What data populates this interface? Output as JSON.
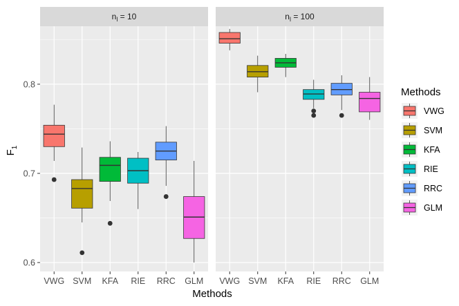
{
  "chart_data": {
    "type": "boxplot",
    "xlabel": "Methods",
    "ylabel": "F",
    "ylabel_sub": "1",
    "ylim": [
      0.59,
      0.865
    ],
    "yticks": [
      0.6,
      0.7,
      0.8
    ],
    "ytick_labels": [
      "0.6",
      "0.7",
      "0.8"
    ],
    "categories": [
      "VWG",
      "SVM",
      "KFA",
      "RIE",
      "RRC",
      "GLM"
    ],
    "colors": {
      "VWG": "#F8766D",
      "SVM": "#B79F00",
      "KFA": "#00BA38",
      "RIE": "#00BFC4",
      "RRC": "#619CFF",
      "GLM": "#F564E3"
    },
    "legend": {
      "title": "Methods",
      "position": "right",
      "entries": [
        "VWG",
        "SVM",
        "KFA",
        "RIE",
        "RRC",
        "GLM"
      ]
    },
    "panels": [
      {
        "strip": {
          "main": "n",
          "sub": "l",
          "suffix": " = 10"
        },
        "boxes": [
          {
            "method": "VWG",
            "lower_whisker": 0.714,
            "q1": 0.73,
            "median": 0.744,
            "q3": 0.754,
            "upper_whisker": 0.777,
            "outliers": [
              0.693
            ]
          },
          {
            "method": "SVM",
            "lower_whisker": 0.645,
            "q1": 0.661,
            "median": 0.683,
            "q3": 0.693,
            "upper_whisker": 0.729,
            "outliers": [
              0.611
            ]
          },
          {
            "method": "KFA",
            "lower_whisker": 0.669,
            "q1": 0.691,
            "median": 0.709,
            "q3": 0.718,
            "upper_whisker": 0.736,
            "outliers": [
              0.644
            ]
          },
          {
            "method": "RIE",
            "lower_whisker": 0.66,
            "q1": 0.689,
            "median": 0.703,
            "q3": 0.717,
            "upper_whisker": 0.724,
            "outliers": []
          },
          {
            "method": "RRC",
            "lower_whisker": 0.686,
            "q1": 0.715,
            "median": 0.725,
            "q3": 0.735,
            "upper_whisker": 0.753,
            "outliers": [
              0.674
            ]
          },
          {
            "method": "GLM",
            "lower_whisker": 0.6,
            "q1": 0.627,
            "median": 0.651,
            "q3": 0.674,
            "upper_whisker": 0.714,
            "outliers": []
          }
        ]
      },
      {
        "strip": {
          "main": "n",
          "sub": "l",
          "suffix": " = 100"
        },
        "boxes": [
          {
            "method": "VWG",
            "lower_whisker": 0.838,
            "q1": 0.846,
            "median": 0.851,
            "q3": 0.858,
            "upper_whisker": 0.862,
            "outliers": []
          },
          {
            "method": "SVM",
            "lower_whisker": 0.791,
            "q1": 0.808,
            "median": 0.814,
            "q3": 0.821,
            "upper_whisker": 0.832,
            "outliers": []
          },
          {
            "method": "KFA",
            "lower_whisker": 0.808,
            "q1": 0.819,
            "median": 0.824,
            "q3": 0.829,
            "upper_whisker": 0.834,
            "outliers": []
          },
          {
            "method": "RIE",
            "lower_whisker": 0.773,
            "q1": 0.783,
            "median": 0.789,
            "q3": 0.794,
            "upper_whisker": 0.805,
            "outliers": [
              0.77,
              0.765
            ]
          },
          {
            "method": "RRC",
            "lower_whisker": 0.771,
            "q1": 0.788,
            "median": 0.794,
            "q3": 0.801,
            "upper_whisker": 0.81,
            "outliers": [
              0.765
            ]
          },
          {
            "method": "GLM",
            "lower_whisker": 0.76,
            "q1": 0.769,
            "median": 0.784,
            "q3": 0.791,
            "upper_whisker": 0.808,
            "outliers": []
          }
        ]
      }
    ]
  }
}
